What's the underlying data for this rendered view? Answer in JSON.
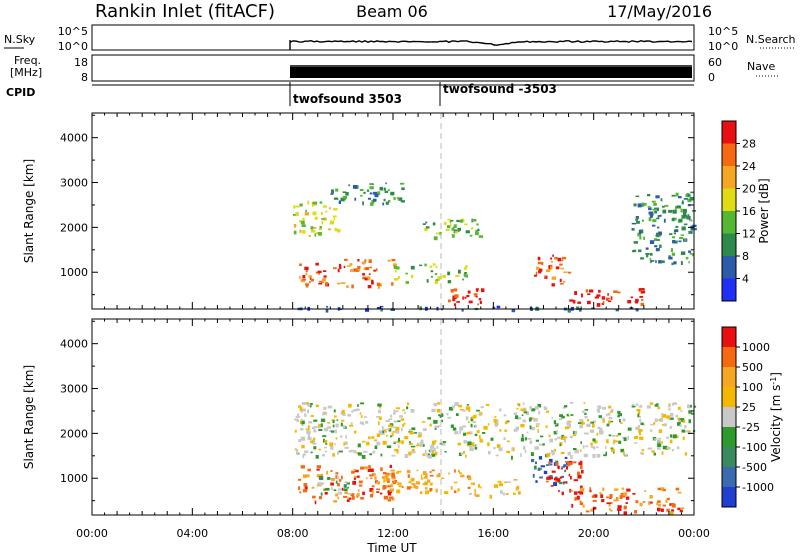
{
  "header": {
    "station": "Rankin Inlet (fitACF)",
    "beam": "Beam 06",
    "date": "17/May/2016"
  },
  "noise_panel": {
    "left_label": "N.Sky",
    "left_ticks": [
      "10^5",
      "10^0"
    ],
    "right_label": "N.Search",
    "right_ticks": [
      "10^5",
      "10^0"
    ]
  },
  "freq_panel": {
    "left_label_1": "Freq.",
    "left_label_2": "[MHz]",
    "left_ticks": [
      "18",
      "8"
    ],
    "right_label": "Nave",
    "right_ticks": [
      "60",
      "0"
    ]
  },
  "cpid_panel": {
    "label": "CPID",
    "programs": [
      "twofsound 3503",
      "twofsound -3503"
    ]
  },
  "x_axis": {
    "label": "Time UT",
    "ticks": [
      "00:00",
      "04:00",
      "08:00",
      "12:00",
      "16:00",
      "20:00",
      "00:00"
    ]
  },
  "colors": {
    "power": [
      "#1f2ff5",
      "#2c5ca8",
      "#2e8a4a",
      "#55b832",
      "#e0dc14",
      "#f5a623",
      "#f56a10",
      "#e81010"
    ],
    "velocity": [
      "#e81010",
      "#f56a10",
      "#f5a623",
      "#f5b800",
      "#c8c8c8",
      "#2e9a2e",
      "#3a8a60",
      "#3a6ab0",
      "#1f3fd0"
    ]
  },
  "chart_data": [
    {
      "type": "heatmap",
      "title": "Power",
      "ylabel": "Slant Range [km]",
      "xlabel": "",
      "ylim": [
        180,
        4550
      ],
      "yticks": [
        "1000",
        "2000",
        "3000",
        "4000"
      ],
      "xlim_hours": [
        0,
        24
      ],
      "colorbar": {
        "label": "Power [dB]",
        "ticks": [
          "4",
          "8",
          "12",
          "16",
          "20",
          "24",
          "28"
        ],
        "range": [
          0,
          32
        ]
      },
      "regions": [
        {
          "t": [
            8.0,
            21.8
          ],
          "r": [
            180,
            260
          ],
          "level": 1
        },
        {
          "t": [
            8.0,
            9.8
          ],
          "r": [
            1800,
            2600
          ],
          "level": 4
        },
        {
          "t": [
            9.5,
            12.5
          ],
          "r": [
            2500,
            3000
          ],
          "level": 2
        },
        {
          "t": [
            13.0,
            15.5
          ],
          "r": [
            1800,
            2200
          ],
          "level": 3
        },
        {
          "t": [
            8.2,
            12.0
          ],
          "r": [
            700,
            1300
          ],
          "level": 6
        },
        {
          "t": [
            12.0,
            15.0
          ],
          "r": [
            800,
            1200
          ],
          "level": 3
        },
        {
          "t": [
            14.0,
            15.6
          ],
          "r": [
            300,
            650
          ],
          "level": 7
        },
        {
          "t": [
            17.5,
            19.0
          ],
          "r": [
            750,
            1400
          ],
          "level": 6
        },
        {
          "t": [
            19.0,
            22.0
          ],
          "r": [
            300,
            650
          ],
          "level": 7
        },
        {
          "t": [
            21.5,
            24.0
          ],
          "r": [
            1200,
            2800
          ],
          "level": 2
        }
      ]
    },
    {
      "type": "heatmap",
      "title": "Velocity",
      "ylabel": "Slant Range [km]",
      "xlabel": "Time UT",
      "ylim": [
        180,
        4550
      ],
      "yticks": [
        "1000",
        "2000",
        "3000",
        "4000"
      ],
      "xlim_hours": [
        0,
        24
      ],
      "colorbar": {
        "label": "Velocity [m s^-1]",
        "ticks": [
          "1000",
          "500",
          "100",
          "25",
          "-25",
          "-100",
          "-500",
          "-1000"
        ],
        "range": [
          -1200,
          1200
        ]
      },
      "regions": [
        {
          "t": [
            8.0,
            24.0
          ],
          "r": [
            1500,
            2700
          ],
          "level": 4
        },
        {
          "t": [
            8.2,
            12.0
          ],
          "r": [
            500,
            1300
          ],
          "level": 1
        },
        {
          "t": [
            11.5,
            15.0
          ],
          "r": [
            700,
            1200
          ],
          "level": 2
        },
        {
          "t": [
            15.0,
            17.0
          ],
          "r": [
            600,
            1000
          ],
          "level": 3
        },
        {
          "t": [
            17.5,
            19.0
          ],
          "r": [
            900,
            1500
          ],
          "level": 7
        },
        {
          "t": [
            18.0,
            19.5
          ],
          "r": [
            700,
            1400
          ],
          "level": 0
        },
        {
          "t": [
            19.0,
            23.5
          ],
          "r": [
            250,
            800
          ],
          "level": 1
        },
        {
          "t": [
            9.0,
            10.2
          ],
          "r": [
            600,
            1100
          ],
          "level": 5
        }
      ]
    }
  ]
}
